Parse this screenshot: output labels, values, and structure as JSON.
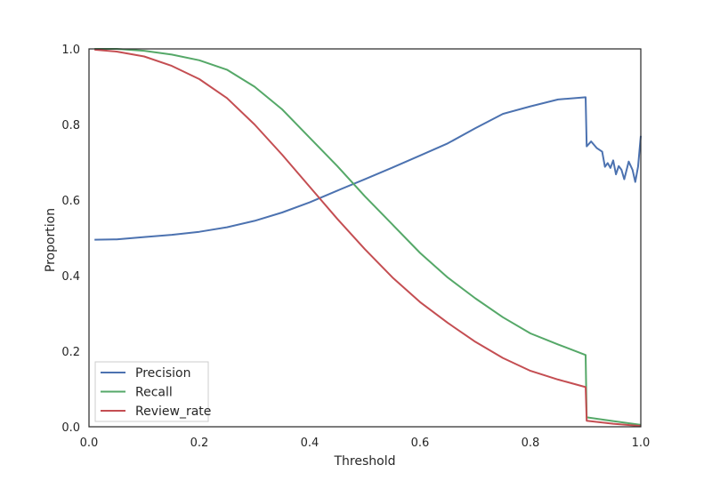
{
  "chart_data": {
    "type": "line",
    "xlabel": "Threshold",
    "ylabel": "Proportion",
    "xlim": [
      0.0,
      1.0
    ],
    "ylim": [
      0.0,
      1.0
    ],
    "xticks": [
      "0.0",
      "0.2",
      "0.4",
      "0.6",
      "0.8",
      "1.0"
    ],
    "yticks": [
      "0.0",
      "0.2",
      "0.4",
      "0.6",
      "0.8",
      "1.0"
    ],
    "grid": false,
    "legend_position": "lower-left",
    "series": [
      {
        "name": "Precision",
        "color": "#4c72b0",
        "points": [
          [
            0.01,
            0.495
          ],
          [
            0.05,
            0.496
          ],
          [
            0.1,
            0.502
          ],
          [
            0.15,
            0.508
          ],
          [
            0.2,
            0.516
          ],
          [
            0.25,
            0.528
          ],
          [
            0.3,
            0.545
          ],
          [
            0.35,
            0.567
          ],
          [
            0.4,
            0.594
          ],
          [
            0.45,
            0.625
          ],
          [
            0.5,
            0.655
          ],
          [
            0.55,
            0.686
          ],
          [
            0.6,
            0.718
          ],
          [
            0.65,
            0.75
          ],
          [
            0.7,
            0.79
          ],
          [
            0.75,
            0.828
          ],
          [
            0.8,
            0.848
          ],
          [
            0.85,
            0.866
          ],
          [
            0.9,
            0.872
          ],
          [
            0.902,
            0.742
          ],
          [
            0.91,
            0.755
          ],
          [
            0.92,
            0.738
          ],
          [
            0.93,
            0.728
          ],
          [
            0.935,
            0.688
          ],
          [
            0.94,
            0.698
          ],
          [
            0.945,
            0.685
          ],
          [
            0.95,
            0.705
          ],
          [
            0.955,
            0.668
          ],
          [
            0.96,
            0.69
          ],
          [
            0.965,
            0.68
          ],
          [
            0.97,
            0.655
          ],
          [
            0.978,
            0.702
          ],
          [
            0.985,
            0.68
          ],
          [
            0.99,
            0.648
          ],
          [
            0.995,
            0.688
          ],
          [
            1.0,
            0.77
          ]
        ]
      },
      {
        "name": "Recall",
        "color": "#55a868",
        "points": [
          [
            0.01,
            1.0
          ],
          [
            0.05,
            1.0
          ],
          [
            0.1,
            0.995
          ],
          [
            0.15,
            0.985
          ],
          [
            0.2,
            0.97
          ],
          [
            0.25,
            0.945
          ],
          [
            0.3,
            0.9
          ],
          [
            0.35,
            0.84
          ],
          [
            0.4,
            0.765
          ],
          [
            0.45,
            0.69
          ],
          [
            0.5,
            0.61
          ],
          [
            0.55,
            0.535
          ],
          [
            0.6,
            0.46
          ],
          [
            0.65,
            0.395
          ],
          [
            0.7,
            0.34
          ],
          [
            0.75,
            0.29
          ],
          [
            0.8,
            0.247
          ],
          [
            0.85,
            0.218
          ],
          [
            0.9,
            0.19
          ],
          [
            0.902,
            0.025
          ],
          [
            0.95,
            0.015
          ],
          [
            1.0,
            0.005
          ]
        ]
      },
      {
        "name": "Review_rate",
        "color": "#c44e52",
        "points": [
          [
            0.01,
            0.998
          ],
          [
            0.05,
            0.993
          ],
          [
            0.1,
            0.98
          ],
          [
            0.15,
            0.955
          ],
          [
            0.2,
            0.92
          ],
          [
            0.25,
            0.87
          ],
          [
            0.3,
            0.8
          ],
          [
            0.35,
            0.72
          ],
          [
            0.4,
            0.635
          ],
          [
            0.45,
            0.55
          ],
          [
            0.5,
            0.47
          ],
          [
            0.55,
            0.395
          ],
          [
            0.6,
            0.33
          ],
          [
            0.65,
            0.275
          ],
          [
            0.7,
            0.225
          ],
          [
            0.75,
            0.182
          ],
          [
            0.8,
            0.148
          ],
          [
            0.85,
            0.125
          ],
          [
            0.9,
            0.105
          ],
          [
            0.902,
            0.016
          ],
          [
            0.95,
            0.008
          ],
          [
            1.0,
            0.002
          ]
        ]
      }
    ]
  }
}
